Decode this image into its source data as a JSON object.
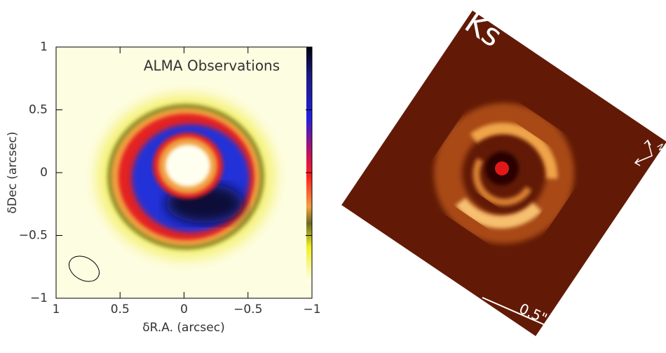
{
  "left_panel": {
    "title": "ALMA Observations",
    "xlabel": "δR.A. (arcsec)",
    "ylabel": "δDec (arcsec)",
    "xlim": [
      1,
      -1
    ],
    "ylim": [
      -1,
      1
    ],
    "xticks": [
      1,
      0.5,
      0,
      {
        "value": -0.5,
        "label": "−0.5"
      },
      {
        "value": -1,
        "label": "−1"
      }
    ],
    "yticks": [
      {
        "value": -1,
        "label": "−1"
      },
      {
        "value": -0.5,
        "label": "−0.5"
      },
      0,
      0.5,
      1
    ]
  },
  "right_panel": {
    "band": "Ks",
    "scale_label": "0.5\"",
    "compass_label": "N"
  }
}
